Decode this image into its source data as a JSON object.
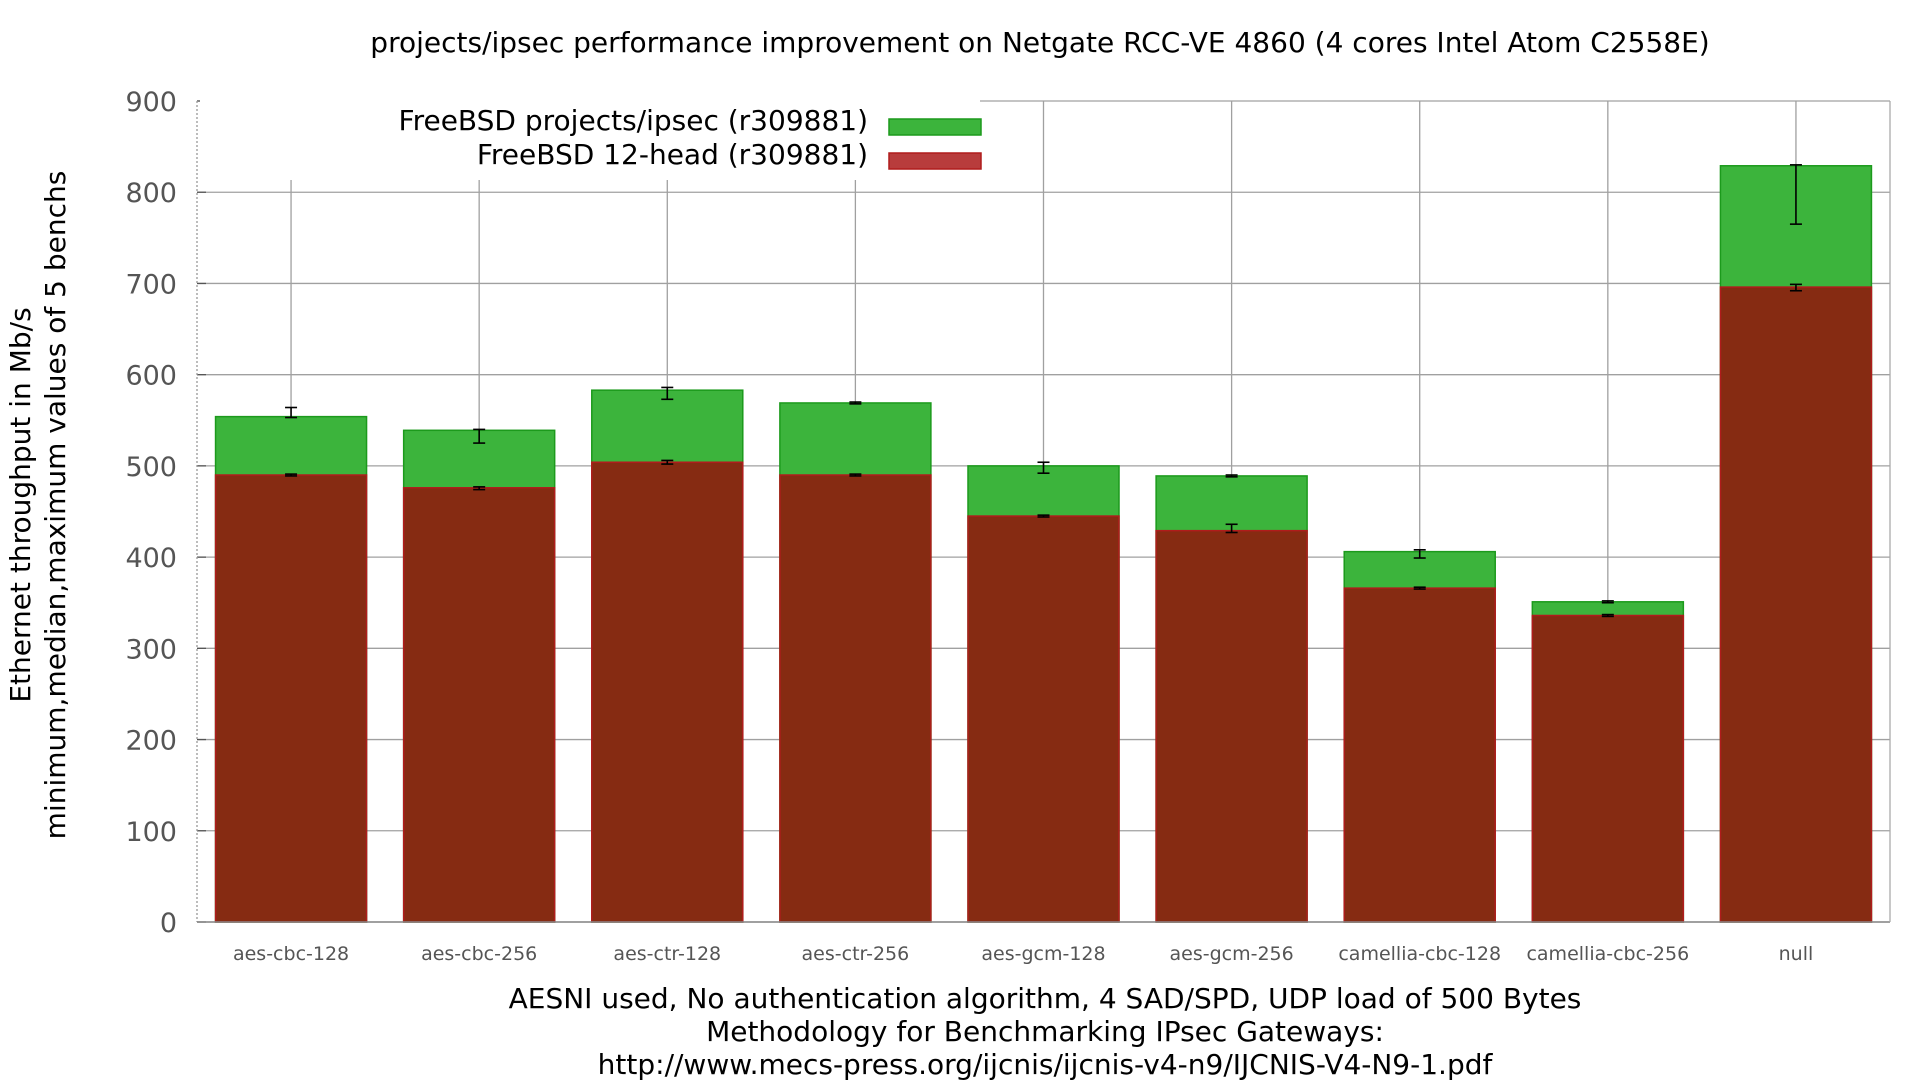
{
  "chart_data": {
    "type": "bar",
    "title": "projects/ipsec performance improvement on Netgate RCC-VE 4860 (4 cores Intel Atom C2558E)",
    "ylabel_lines": [
      "Ethernet throughput in Mb/s",
      "minimum,median,maximum values of 5 benchs"
    ],
    "xlabel_lines": [
      "AESNI used, No authentication algorithm, 4 SAD/SPD, UDP load of 500 Bytes",
      "Methodology for Benchmarking IPsec Gateways:",
      "http://www.mecs-press.org/ijcnis/ijcnis-v4-n9/IJCNIS-V4-N9-1.pdf"
    ],
    "ylim": [
      0,
      900
    ],
    "yticks": [
      0,
      100,
      200,
      300,
      400,
      500,
      600,
      700,
      800,
      900
    ],
    "grid": true,
    "legend_position": "top-left",
    "categories": [
      "aes-cbc-128",
      "aes-cbc-256",
      "aes-ctr-128",
      "aes-ctr-256",
      "aes-gcm-128",
      "aes-gcm-256",
      "camellia-cbc-128",
      "camellia-cbc-256",
      "null"
    ],
    "series": [
      {
        "name": "FreeBSD projects/ipsec (r309881)",
        "color": "#3cb43c",
        "edge": "#1c9a1c",
        "values": [
          554,
          539,
          583,
          569,
          500,
          489,
          406,
          351,
          829
        ],
        "min": [
          553,
          525,
          573,
          568,
          492,
          488,
          399,
          350,
          765
        ],
        "max": [
          564,
          540,
          586,
          570,
          504,
          490,
          408,
          352,
          830
        ]
      },
      {
        "name": "FreeBSD 12-head (r309881)",
        "color": "#862b12",
        "edge": "#b01c1c",
        "values": [
          490,
          476,
          504,
          490,
          445,
          429,
          366,
          336,
          696
        ],
        "min": [
          489,
          474,
          502,
          489,
          444,
          427,
          365,
          335,
          692
        ],
        "max": [
          491,
          477,
          506,
          491,
          446,
          436,
          367,
          337,
          699
        ]
      }
    ]
  }
}
